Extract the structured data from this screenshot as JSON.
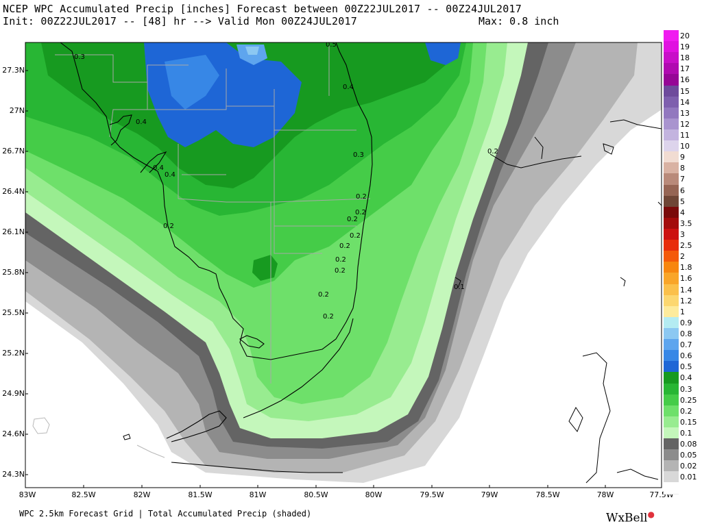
{
  "header": {
    "line1": "NCEP WPC Accumulated Precip [inches] Forecast between 00Z22JUL2017 -- 00Z24JUL2017",
    "line2": "Init: 00Z22JUL2017 -- [48] hr --> Valid Mon 00Z24JUL2017",
    "max": "Max: 0.8 inch"
  },
  "axes": {
    "lat_labels": [
      "27.3N",
      "27N",
      "26.7N",
      "26.4N",
      "26.1N",
      "25.8N",
      "25.5N",
      "25.2N",
      "24.9N",
      "24.6N",
      "24.3N"
    ],
    "lon_labels": [
      "83W",
      "82.5W",
      "82W",
      "81.5W",
      "81W",
      "80.5W",
      "80W",
      "79.5W",
      "79W",
      "78.5W",
      "78W",
      "77.5W"
    ]
  },
  "contour_labels": [
    "0.5",
    "0.3",
    "0.4",
    "0.4",
    "0.4",
    "0.4",
    "0.3",
    "0.2",
    "0.2",
    "0.2",
    "0.2",
    "0.2",
    "0.2",
    "0.2",
    "0.2",
    "0.2",
    "0.2",
    "0.2",
    "0.1"
  ],
  "legend": [
    {
      "label": "20",
      "color": "#f01bf0"
    },
    {
      "label": "19",
      "color": "#e011e0"
    },
    {
      "label": "18",
      "color": "#c80fc8"
    },
    {
      "label": "17",
      "color": "#b00ab0"
    },
    {
      "label": "16",
      "color": "#960696"
    },
    {
      "label": "15",
      "color": "#6e4a9c"
    },
    {
      "label": "14",
      "color": "#7e5fae"
    },
    {
      "label": "13",
      "color": "#9278bf"
    },
    {
      "label": "12",
      "color": "#a994cf"
    },
    {
      "label": "11",
      "color": "#c3b4df"
    },
    {
      "label": "10",
      "color": "#ddd4ec"
    },
    {
      "label": "9",
      "color": "#f1dcd2"
    },
    {
      "label": "8",
      "color": "#d9b2a3"
    },
    {
      "label": "7",
      "color": "#b98a7a"
    },
    {
      "label": "6",
      "color": "#966554"
    },
    {
      "label": "5",
      "color": "#6f4636"
    },
    {
      "label": "4",
      "color": "#7a0a0a"
    },
    {
      "label": "3.5",
      "color": "#a30b0b"
    },
    {
      "label": "3",
      "color": "#cc1010"
    },
    {
      "label": "2.5",
      "color": "#e82d0c"
    },
    {
      "label": "2",
      "color": "#f45a0a"
    },
    {
      "label": "1.8",
      "color": "#f7860f"
    },
    {
      "label": "1.6",
      "color": "#f9a528"
    },
    {
      "label": "1.4",
      "color": "#fbc04a"
    },
    {
      "label": "1.2",
      "color": "#fcd770"
    },
    {
      "label": "1",
      "color": "#fdeb9c"
    },
    {
      "label": "0.9",
      "color": "#b4ecf2"
    },
    {
      "label": "0.8",
      "color": "#8cc8f2"
    },
    {
      "label": "0.7",
      "color": "#5ea5ee"
    },
    {
      "label": "0.6",
      "color": "#3787e6"
    },
    {
      "label": "0.5",
      "color": "#1e66d6"
    },
    {
      "label": "0.4",
      "color": "#179a20"
    },
    {
      "label": "0.3",
      "color": "#28b634"
    },
    {
      "label": "0.25",
      "color": "#45cc48"
    },
    {
      "label": "0.2",
      "color": "#6ee06a"
    },
    {
      "label": "0.15",
      "color": "#98ec90"
    },
    {
      "label": "0.1",
      "color": "#c4f7bb"
    },
    {
      "label": "0.08",
      "color": "#646464"
    },
    {
      "label": "0.05",
      "color": "#8c8c8c"
    },
    {
      "label": "0.02",
      "color": "#b4b4b4"
    },
    {
      "label": "0.01",
      "color": "#d8d8d8"
    },
    {
      "label": "",
      "color": "#ffffff"
    }
  ],
  "footer": "WPC 2.5km Forecast Grid | Total Accumulated Precip (shaded)",
  "brand": "WxBell"
}
